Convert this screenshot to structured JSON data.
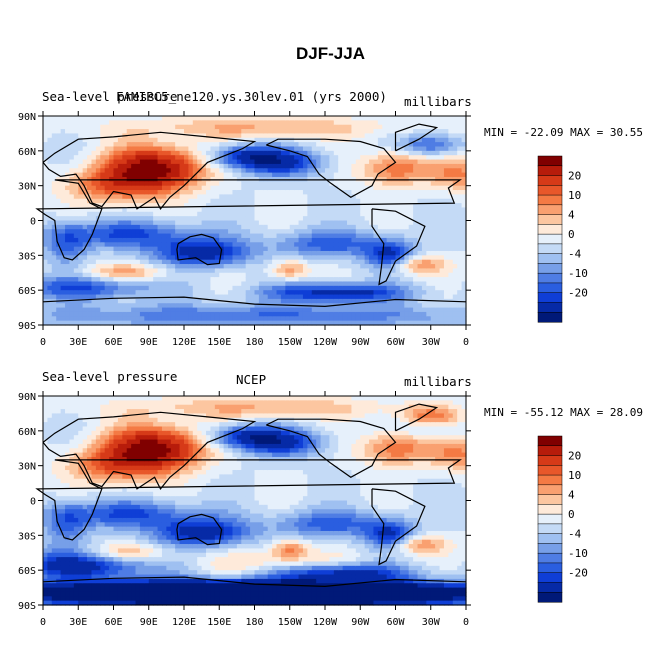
{
  "main_title": "DJF-JJA",
  "panels": [
    {
      "left_label": "Sea-level pressure",
      "center_label": "FAMIPC5_ne120.ys.30lev.01 (yrs 2000)",
      "units_label": "millibars",
      "min_max": "MIN = -22.09 MAX =  30.55"
    },
    {
      "left_label": "Sea-level pressure",
      "center_label": "NCEP",
      "units_label": "millibars",
      "min_max": "MIN = -55.12 MAX =  28.09"
    }
  ],
  "chart_data": [
    {
      "type": "heatmap",
      "title": "FAMIPC5_ne120.ys.30lev.01 (yrs 2000)",
      "variable": "Sea-level pressure",
      "units": "millibars",
      "min": -22.09,
      "max": 30.55,
      "x_ticks": [
        "0",
        "30E",
        "60E",
        "90E",
        "120E",
        "150E",
        "180",
        "150W",
        "120W",
        "90W",
        "60W",
        "30W",
        "0"
      ],
      "y_ticks": [
        "90N",
        "60N",
        "30N",
        "0",
        "30S",
        "60S",
        "90S"
      ],
      "colorbar_levels": [
        -20,
        -16,
        -12,
        -10,
        -8,
        -6,
        -4,
        -2,
        0,
        2,
        4,
        6,
        8,
        10,
        12,
        16,
        20
      ],
      "colorbar_labels": [
        "20",
        "10",
        "4",
        "0",
        "-4",
        "-10",
        "-20"
      ]
    },
    {
      "type": "heatmap",
      "title": "NCEP",
      "variable": "Sea-level pressure",
      "units": "millibars",
      "min": -55.12,
      "max": 28.09,
      "x_ticks": [
        "0",
        "30E",
        "60E",
        "90E",
        "120E",
        "150E",
        "180",
        "150W",
        "120W",
        "90W",
        "60W",
        "30W",
        "0"
      ],
      "y_ticks": [
        "90N",
        "60N",
        "30N",
        "0",
        "30S",
        "60S",
        "90S"
      ],
      "colorbar_levels": [
        -20,
        -16,
        -12,
        -10,
        -8,
        -6,
        -4,
        -2,
        0,
        2,
        4,
        6,
        8,
        10,
        12,
        16,
        20
      ],
      "colorbar_labels": [
        "20",
        "10",
        "4",
        "0",
        "-4",
        "-10",
        "-20"
      ]
    }
  ],
  "colors": [
    "#800000",
    "#b71c0b",
    "#d63a18",
    "#e8572a",
    "#f47a44",
    "#f9a070",
    "#fcc6a0",
    "#feeada",
    "#e6f0fb",
    "#c4daf6",
    "#9fc0f1",
    "#779fe8",
    "#4f7de4",
    "#2a5ee0",
    "#0f3ed6",
    "#062aa6",
    "#001978"
  ]
}
